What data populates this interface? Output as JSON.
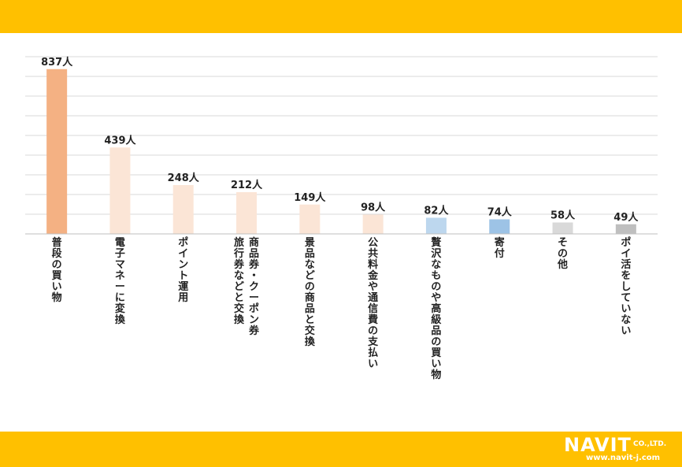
{
  "chart_data": {
    "type": "bar",
    "unit": "人",
    "categories": [
      [
        "普段の買い物"
      ],
      [
        "電子マネーに変換"
      ],
      [
        "ポイント運用"
      ],
      [
        "商品券・クーポン券",
        "旅行券などと交換"
      ],
      [
        "景品などの商品と交換"
      ],
      [
        "公共料金や通信費の支払い"
      ],
      [
        "贅沢なものや高級品の買い物"
      ],
      [
        "寄付"
      ],
      [
        "その他"
      ],
      [
        "ポイ活をしていない"
      ]
    ],
    "values": [
      837,
      439,
      248,
      212,
      149,
      98,
      82,
      74,
      58,
      49
    ],
    "data_labels": [
      "837人",
      "439人",
      "248人",
      "212人",
      "149人",
      "98人",
      "82人",
      "74人",
      "58人",
      "49人"
    ],
    "colors": [
      "#F4B183",
      "#FBE5D6",
      "#FBE5D6",
      "#FBE5D6",
      "#FBE5D6",
      "#FBE5D6",
      "#BDD7EE",
      "#9DC3E6",
      "#D9D9D9",
      "#BFBFBF"
    ],
    "ylim": [
      0,
      900
    ],
    "gridlines": true,
    "legend": "none"
  },
  "brand": {
    "logo_text": "NAVIT",
    "logo_suffix": "CO.,LTD.",
    "url": "www.navit-j.com",
    "band_color": "#FFC000"
  }
}
